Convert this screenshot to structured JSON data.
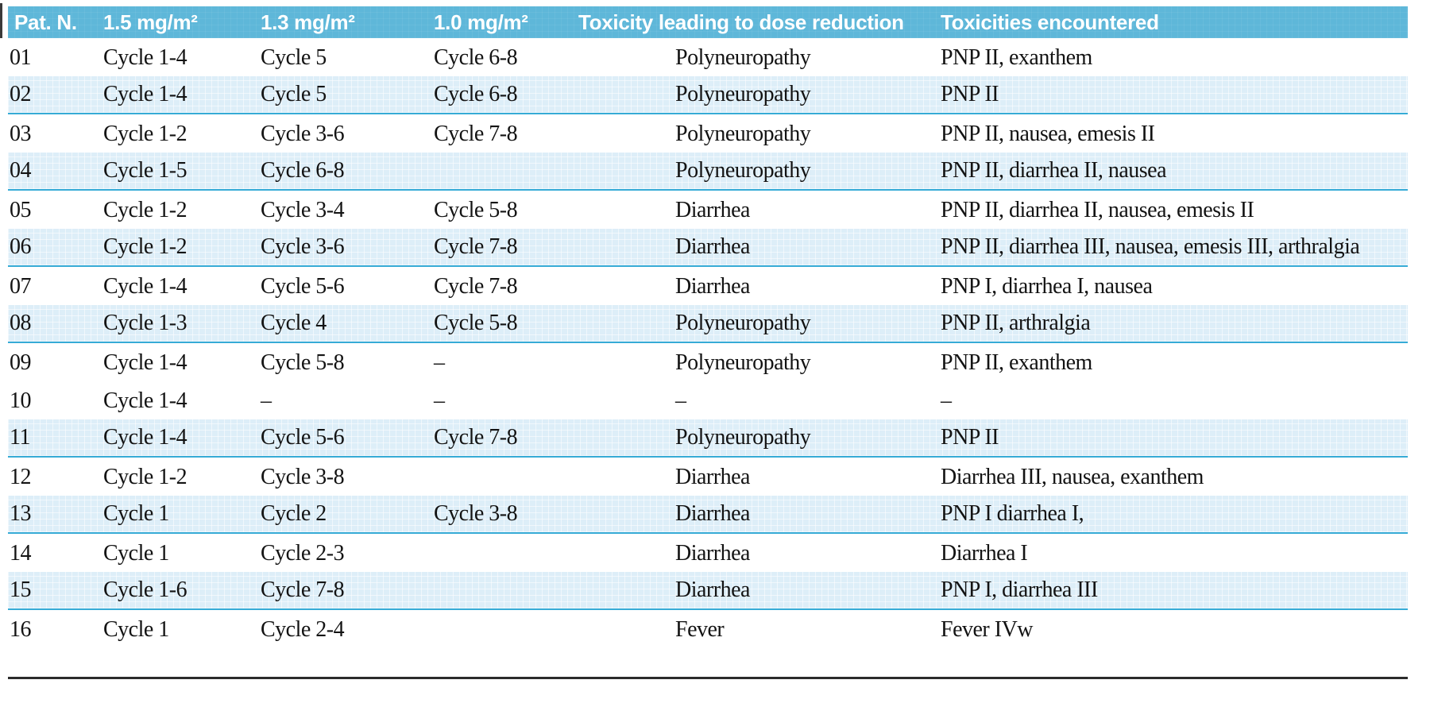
{
  "colors": {
    "header_bg": "#5eb7d9",
    "shade": "#ddeef8",
    "separator": "#36abd6",
    "rule": "#2b2b2b",
    "text": "#131313",
    "header_text": "#ffffff"
  },
  "table": {
    "columns": [
      {
        "label": "Pat. N."
      },
      {
        "label": "1.5 mg/m²"
      },
      {
        "label": "1.3 mg/m²"
      },
      {
        "label": "1.0 mg/m²"
      },
      {
        "label": "Toxicity leading to dose reduction"
      },
      {
        "label": "Toxicities encountered"
      }
    ],
    "rows": [
      {
        "pat": "01",
        "d15": "Cycle 1-4",
        "d13": "Cycle 5",
        "d10": "Cycle 6-8",
        "tox_reduction": "Polyneuropathy",
        "tox_encountered": "PNP II, exanthem",
        "shaded": false
      },
      {
        "pat": "02",
        "d15": "Cycle 1-4",
        "d13": "Cycle 5",
        "d10": "Cycle 6-8",
        "tox_reduction": "Polyneuropathy",
        "tox_encountered": "PNP II",
        "shaded": true
      },
      {
        "pat": "03",
        "d15": "Cycle 1-2",
        "d13": "Cycle 3-6",
        "d10": "Cycle 7-8",
        "tox_reduction": "Polyneuropathy",
        "tox_encountered": "PNP II, nausea, emesis II",
        "shaded": false
      },
      {
        "pat": "04",
        "d15": "Cycle 1-5",
        "d13": "Cycle 6-8",
        "d10": "",
        "tox_reduction": "Polyneuropathy",
        "tox_encountered": "PNP II, diarrhea II, nausea",
        "shaded": true
      },
      {
        "pat": "05",
        "d15": "Cycle 1-2",
        "d13": "Cycle 3-4",
        "d10": "Cycle 5-8",
        "tox_reduction": "Diarrhea",
        "tox_encountered": "PNP II, diarrhea II, nausea, emesis II",
        "shaded": false
      },
      {
        "pat": "06",
        "d15": "Cycle 1-2",
        "d13": "Cycle 3-6",
        "d10": "Cycle 7-8",
        "tox_reduction": "Diarrhea",
        "tox_encountered": "PNP II, diarrhea III, nausea, emesis III, arthralgia",
        "shaded": true
      },
      {
        "pat": "07",
        "d15": "Cycle 1-4",
        "d13": "Cycle 5-6",
        "d10": "Cycle 7-8",
        "tox_reduction": "Diarrhea",
        "tox_encountered": "PNP I, diarrhea I, nausea",
        "shaded": false
      },
      {
        "pat": "08",
        "d15": "Cycle 1-3",
        "d13": "Cycle 4",
        "d10": "Cycle 5-8",
        "tox_reduction": "Polyneuropathy",
        "tox_encountered": "PNP II, arthralgia",
        "shaded": true
      },
      {
        "pat": "09",
        "d15": "Cycle 1-4",
        "d13": "Cycle 5-8",
        "d10": "–",
        "tox_reduction": "Polyneuropathy",
        "tox_encountered": "PNP II, exanthem",
        "shaded": false
      },
      {
        "pat": "10",
        "d15": "Cycle 1-4",
        "d13": "–",
        "d10": "–",
        "tox_reduction": "–",
        "tox_encountered": "–",
        "shaded": false
      },
      {
        "pat": "11",
        "d15": "Cycle 1-4",
        "d13": "Cycle 5-6",
        "d10": "Cycle 7-8",
        "tox_reduction": "Polyneuropathy",
        "tox_encountered": "PNP II",
        "shaded": true
      },
      {
        "pat": "12",
        "d15": "Cycle 1-2",
        "d13": "Cycle 3-8",
        "d10": "",
        "tox_reduction": "Diarrhea",
        "tox_encountered": "Diarrhea III, nausea, exanthem",
        "shaded": false
      },
      {
        "pat": "13",
        "d15": "Cycle 1",
        "d13": "Cycle 2",
        "d10": "Cycle 3-8",
        "tox_reduction": "Diarrhea",
        "tox_encountered": "PNP I diarrhea I,",
        "shaded": true
      },
      {
        "pat": "14",
        "d15": "Cycle 1",
        "d13": "Cycle 2-3",
        "d10": "",
        "tox_reduction": "Diarrhea",
        "tox_encountered": "Diarrhea I",
        "shaded": false
      },
      {
        "pat": "15",
        "d15": "Cycle 1-6",
        "d13": "Cycle 7-8",
        "d10": "",
        "tox_reduction": "Diarrhea",
        "tox_encountered": "PNP I, diarrhea III",
        "shaded": true
      },
      {
        "pat": "16",
        "d15": "Cycle 1",
        "d13": "Cycle 2-4",
        "d10": "",
        "tox_reduction": "Fever",
        "tox_encountered": "Fever IVw",
        "shaded": false
      }
    ]
  }
}
